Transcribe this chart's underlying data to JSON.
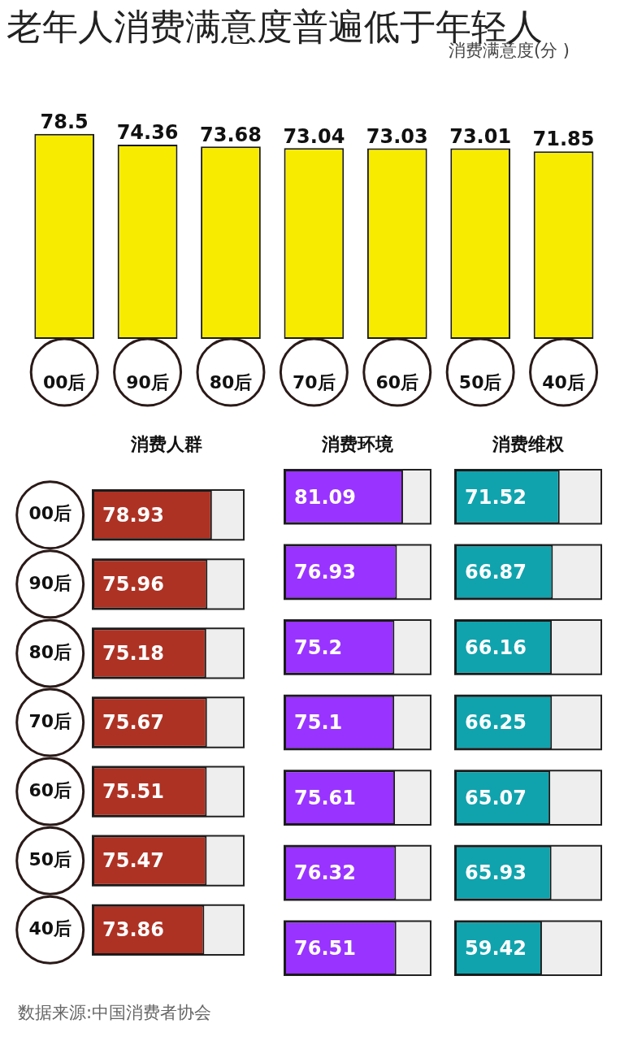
{
  "chart_data": [
    {
      "type": "bar",
      "title": "老年人消费满意度普遍低于年轻人",
      "ylabel": "消费满意度(分 )",
      "categories": [
        "00后",
        "90后",
        "80后",
        "70后",
        "60后",
        "50后",
        "40后"
      ],
      "values": [
        78.5,
        74.36,
        73.68,
        73.04,
        73.03,
        73.01,
        71.85
      ],
      "color": "#f7ec00",
      "data_labels": true,
      "tick_labels": "x",
      "grid": false,
      "legend": false
    },
    {
      "type": "bar",
      "orientation": "horizontal",
      "title": "消费人群",
      "categories": [
        "00后",
        "90后",
        "80后",
        "70后",
        "60后",
        "50后",
        "40后"
      ],
      "values": [
        78.93,
        75.96,
        75.18,
        75.67,
        75.51,
        75.47,
        73.86
      ],
      "color": "#ad3224",
      "xlim": [
        0,
        100
      ],
      "data_labels": true,
      "tick_labels": "y",
      "grid": false,
      "legend": false
    },
    {
      "type": "bar",
      "orientation": "horizontal",
      "title": "消费环境",
      "categories": [
        null,
        null,
        null,
        null,
        null,
        null,
        null
      ],
      "values": [
        81.09,
        76.93,
        75.2,
        75.1,
        75.61,
        76.32,
        76.51
      ],
      "color": "#9933ff",
      "xlim": [
        0,
        100
      ],
      "data_labels": true,
      "tick_labels": false,
      "grid": false,
      "legend": false
    },
    {
      "type": "bar",
      "orientation": "horizontal",
      "title": "消费维权",
      "categories": [
        null,
        null,
        null,
        null,
        null,
        null,
        null
      ],
      "values": [
        71.52,
        66.87,
        66.16,
        66.25,
        65.07,
        65.93,
        59.42
      ],
      "color": "#10a3ad",
      "xlim": [
        0,
        100
      ],
      "data_labels": true,
      "tick_labels": false,
      "grid": false,
      "legend": false,
      "annotations": [
        "数据来源:中国消费者协会"
      ]
    }
  ]
}
